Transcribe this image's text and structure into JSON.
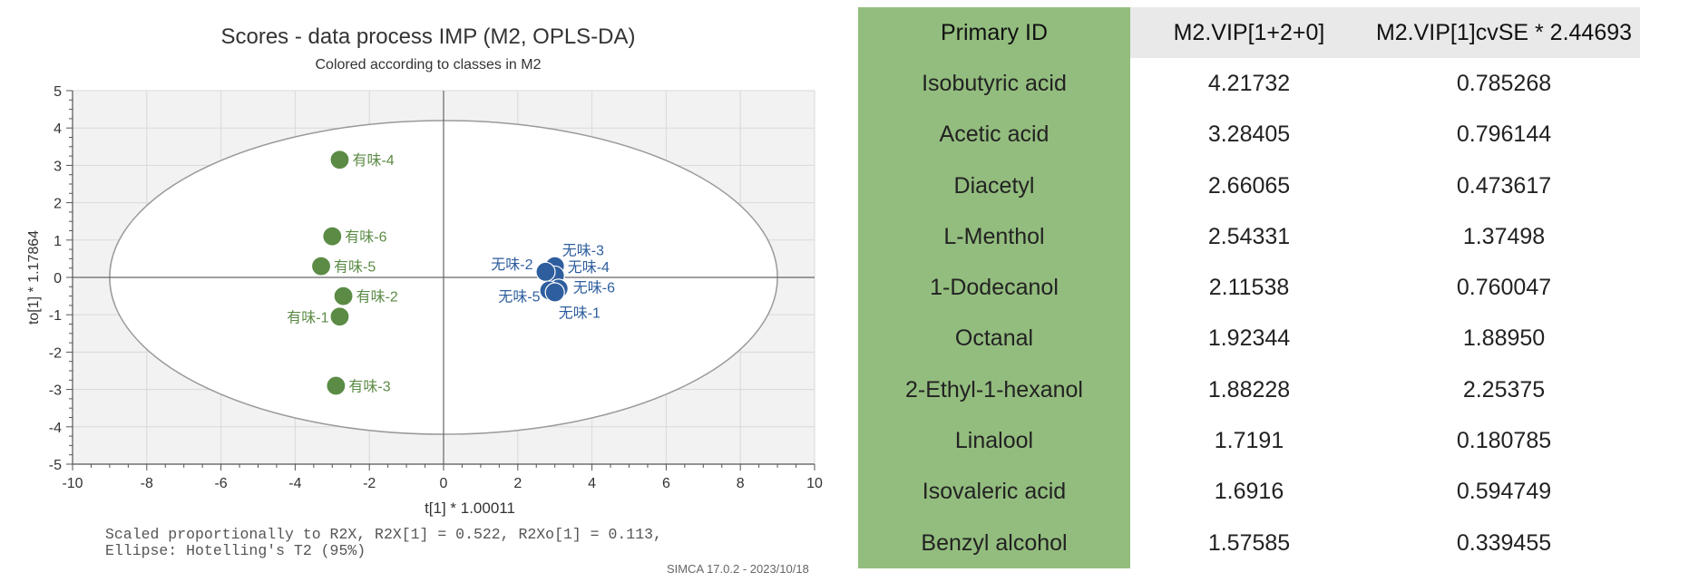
{
  "chart_data": {
    "type": "scatter",
    "title": "Scores - data process IMP (M2, OPLS-DA)",
    "subtitle": "Colored according to classes in M2",
    "xlabel": "t[1] * 1.00011",
    "ylabel": "to[1] * 1.17864",
    "xlim": [
      -10,
      10
    ],
    "ylim": [
      -5,
      5
    ],
    "xticks": [
      "-10",
      "-8",
      "-6",
      "-4",
      "-2",
      "0",
      "2",
      "4",
      "6",
      "8",
      "10"
    ],
    "yticks": [
      "5",
      "4",
      "3",
      "2",
      "1",
      "0",
      "-1",
      "-2",
      "-3",
      "-4",
      "-5"
    ],
    "grid": true,
    "ellipse": {
      "cx": 0,
      "cy": 0,
      "rx": 9.0,
      "ry": 4.2
    },
    "series": [
      {
        "color": "#5b8b45",
        "points": [
          {
            "label": "有味-4",
            "x": -2.8,
            "y": 3.15
          },
          {
            "label": "有味-6",
            "x": -3.0,
            "y": 1.1
          },
          {
            "label": "有味-5",
            "x": -3.3,
            "y": 0.3
          },
          {
            "label": "有味-2",
            "x": -2.7,
            "y": -0.5
          },
          {
            "label": "有味-1",
            "x": -2.8,
            "y": -1.05
          },
          {
            "label": "有味-3",
            "x": -2.9,
            "y": -2.9
          }
        ]
      },
      {
        "color": "#2e5e9e",
        "points": [
          {
            "label": "无味-3",
            "x": 3.0,
            "y": 0.3
          },
          {
            "label": "无味-4",
            "x": 3.0,
            "y": 0.05
          },
          {
            "label": "无味-2",
            "x": 2.75,
            "y": 0.15
          },
          {
            "label": "无味-6",
            "x": 3.1,
            "y": -0.3
          },
          {
            "label": "无味-5",
            "x": 2.85,
            "y": -0.35
          },
          {
            "label": "无味-1",
            "x": 3.0,
            "y": -0.4
          }
        ]
      }
    ],
    "footnote_lines": [
      "Scaled proportionally to R2X, R2X[1] = 0.522, R2Xo[1] = 0.113,",
      "Ellipse: Hotelling's T2 (95%)"
    ],
    "software_stamp": "SIMCA 17.0.2 - 2023/10/18"
  },
  "table": {
    "headers": [
      "Primary ID",
      "M2.VIP[1+2+0]",
      "M2.VIP[1]cvSE * 2.44693"
    ],
    "rows": [
      [
        "Isobutyric acid",
        "4.21732",
        "0.785268"
      ],
      [
        "Acetic acid",
        "3.28405",
        "0.796144"
      ],
      [
        "Diacetyl",
        "2.66065",
        "0.473617"
      ],
      [
        "L-Menthol",
        "2.54331",
        "1.37498"
      ],
      [
        "1-Dodecanol",
        "2.11538",
        "0.760047"
      ],
      [
        "Octanal",
        "1.92344",
        "1.88950"
      ],
      [
        "2-Ethyl-1-hexanol",
        "1.88228",
        "2.25375"
      ],
      [
        "Linalool",
        "1.7191",
        "0.180785"
      ],
      [
        "Isovaleric acid",
        "1.6916",
        "0.594749"
      ],
      [
        "Benzyl alcohol",
        "1.57585",
        "0.339455"
      ]
    ]
  }
}
